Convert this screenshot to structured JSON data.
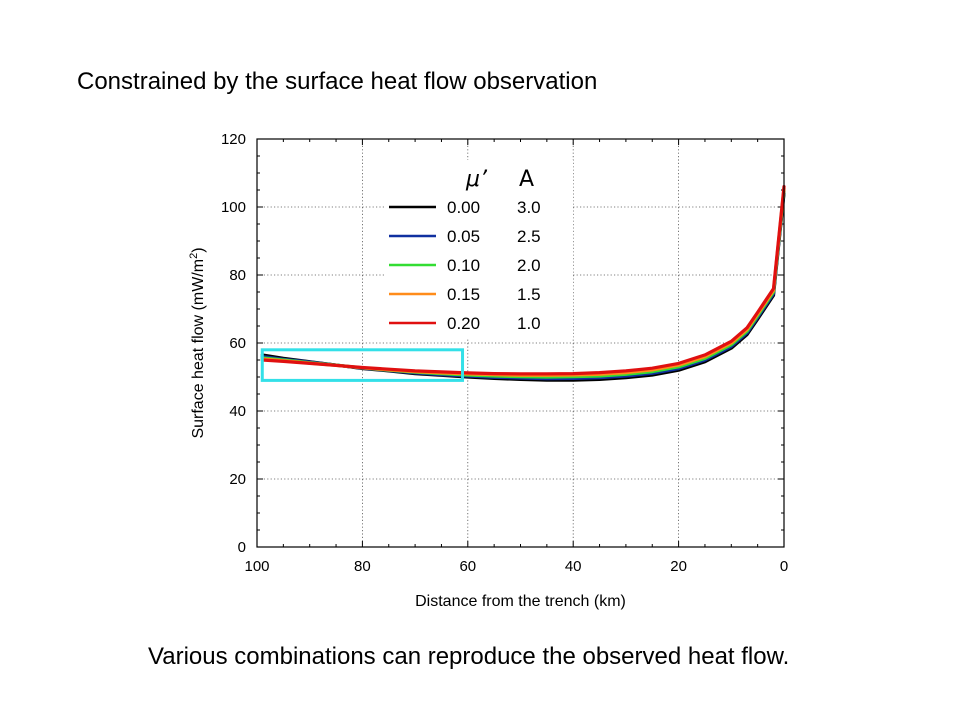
{
  "slide": {
    "title": "Constrained by the surface heat flow observation",
    "caption": "Various combinations can reproduce the observed heat flow."
  },
  "chart_data": {
    "type": "line",
    "title": "",
    "xlabel": "Distance from the trench (km)",
    "ylabel_main": "Surface heat flow (mW/m",
    "ylabel_sup": "2",
    "ylabel_tail": ")",
    "xlim": [
      100,
      0
    ],
    "ylim": [
      0,
      120
    ],
    "x_reversed": true,
    "grid": "dotted",
    "xticks": [
      100,
      80,
      60,
      40,
      20,
      0
    ],
    "yticks": [
      0,
      20,
      40,
      60,
      80,
      100,
      120
    ],
    "legend": {
      "placement": "top-left",
      "header_mu": "μ’",
      "header_a": "A",
      "entries": [
        {
          "mu": "0.00",
          "a": "3.0",
          "color": "#000000"
        },
        {
          "mu": "0.05",
          "a": "2.5",
          "color": "#1030a0"
        },
        {
          "mu": "0.10",
          "a": "2.0",
          "color": "#33dd33"
        },
        {
          "mu": "0.15",
          "a": "1.5",
          "color": "#ff8c1a"
        },
        {
          "mu": "0.20",
          "a": "1.0",
          "color": "#e01010"
        }
      ]
    },
    "x": [
      99,
      95,
      90,
      85,
      80,
      75,
      70,
      65,
      60,
      55,
      50,
      45,
      40,
      35,
      30,
      25,
      20,
      15,
      10,
      7,
      5,
      2,
      0
    ],
    "series": [
      {
        "mu": "0.00",
        "a": "3.0",
        "color": "#000000",
        "values": [
          56.5,
          55.5,
          54.5,
          53.5,
          52.5,
          51.8,
          51.0,
          50.5,
          50.0,
          49.6,
          49.3,
          49.1,
          49.1,
          49.3,
          49.8,
          50.6,
          52.0,
          54.5,
          58.5,
          62.5,
          67.0,
          74.0,
          104.0
        ]
      },
      {
        "mu": "0.05",
        "a": "2.5",
        "color": "#1030a0",
        "values": [
          56.0,
          55.2,
          54.4,
          53.5,
          52.6,
          51.9,
          51.2,
          50.7,
          50.3,
          49.9,
          49.7,
          49.5,
          49.6,
          49.8,
          50.3,
          51.1,
          52.5,
          55.0,
          59.0,
          63.0,
          67.5,
          74.5,
          104.5
        ]
      },
      {
        "mu": "0.10",
        "a": "2.0",
        "color": "#33dd33",
        "values": [
          55.6,
          55.0,
          54.2,
          53.5,
          52.7,
          52.0,
          51.4,
          51.0,
          50.6,
          50.3,
          50.1,
          50.0,
          50.1,
          50.3,
          50.8,
          51.6,
          53.0,
          55.5,
          59.5,
          63.5,
          68.0,
          75.0,
          105.0
        ]
      },
      {
        "mu": "0.15",
        "a": "1.5",
        "color": "#ff8c1a",
        "values": [
          55.3,
          54.8,
          54.1,
          53.4,
          52.7,
          52.1,
          51.6,
          51.2,
          50.9,
          50.7,
          50.5,
          50.5,
          50.6,
          50.8,
          51.3,
          52.1,
          53.5,
          56.0,
          60.0,
          64.0,
          68.5,
          75.5,
          105.5
        ]
      },
      {
        "mu": "0.20",
        "a": "1.0",
        "color": "#e01010",
        "values": [
          55.0,
          54.6,
          54.0,
          53.4,
          52.8,
          52.3,
          51.8,
          51.5,
          51.2,
          51.0,
          50.9,
          50.9,
          51.0,
          51.3,
          51.8,
          52.6,
          54.0,
          56.5,
          60.5,
          64.5,
          69.0,
          76.0,
          106.0
        ]
      }
    ],
    "highlight_box": {
      "x_range": [
        99,
        61
      ],
      "y_range": [
        49,
        58
      ],
      "color": "#33e0e8"
    }
  }
}
